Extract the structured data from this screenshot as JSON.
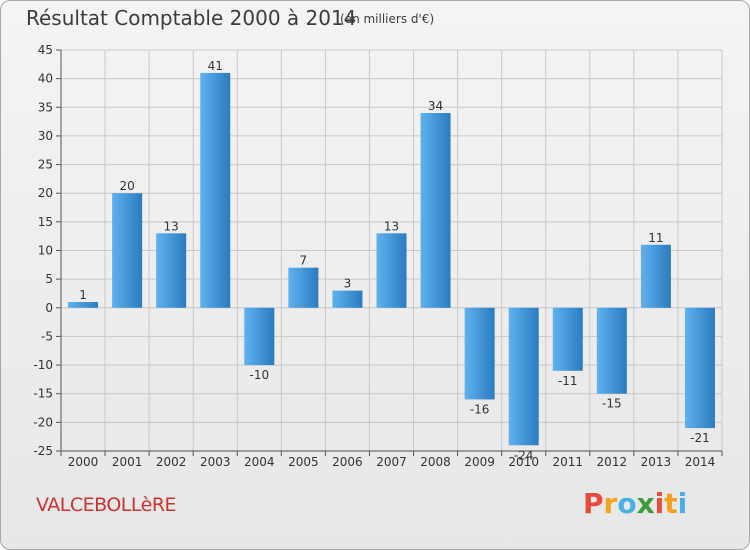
{
  "title": "Résultat Comptable 2000 à 2014",
  "subtitle": "(en milliers d'€)",
  "commune": "VALCEBOLLèRE",
  "brand": {
    "letters": [
      "P",
      "r",
      "o",
      "x",
      "i",
      "t",
      "i"
    ],
    "colors": [
      "#e84b3a",
      "#f3a31b",
      "#49b0e6",
      "#3f9c3a",
      "#e84b3a",
      "#f3a31b",
      "#49b0e6"
    ]
  },
  "colors": {
    "bar_light": "#5fb2ee",
    "bar_dark": "#2b7bc0",
    "grid": "#c8c8c8",
    "axis_text": "#333333"
  },
  "chart_data": {
    "type": "bar",
    "categories": [
      "2000",
      "2001",
      "2002",
      "2003",
      "2004",
      "2005",
      "2006",
      "2007",
      "2008",
      "2009",
      "2010",
      "2011",
      "2012",
      "2013",
      "2014"
    ],
    "values": [
      1,
      20,
      13,
      41,
      -10,
      7,
      3,
      13,
      34,
      -16,
      -24,
      -11,
      -15,
      11,
      -21
    ],
    "title": "Résultat Comptable 2000 à 2014",
    "ylabel": "",
    "xlabel": "",
    "ylim": [
      -25,
      45
    ],
    "yticks": [
      -25,
      -20,
      -15,
      -10,
      -5,
      0,
      5,
      10,
      15,
      20,
      25,
      30,
      35,
      40,
      45
    ],
    "grid": true
  }
}
